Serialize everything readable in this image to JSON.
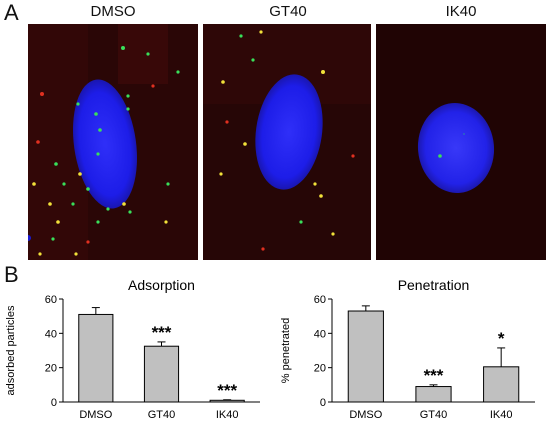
{
  "panels": {
    "a": "A",
    "b": "B"
  },
  "images": [
    {
      "title": "DMSO"
    },
    {
      "title": "GT40"
    },
    {
      "title": "IK40"
    }
  ],
  "colors": {
    "nucleus": "#1e1ef0",
    "background": "#2a0505",
    "green_particle": "#39e05a",
    "yellow_particle": "#f2e23a",
    "red_particle": "#e03020",
    "bar_fill": "#c0c0c0"
  },
  "chart_data": [
    {
      "type": "bar",
      "title": "Adsorption",
      "ylabel": "adsorbed particles",
      "categories": [
        "DMSO",
        "GT40",
        "IK40"
      ],
      "values": [
        51,
        32.5,
        1
      ],
      "errors": [
        4,
        2.5,
        0.3
      ],
      "significance": [
        "",
        "***",
        "***"
      ],
      "ylim": [
        0,
        60
      ],
      "yticks": [
        "0",
        "20",
        "40",
        "60"
      ]
    },
    {
      "type": "bar",
      "title": "Penetration",
      "ylabel": "% penetrated",
      "categories": [
        "DMSO",
        "GT40",
        "IK40"
      ],
      "values": [
        53,
        9,
        20.5
      ],
      "errors": [
        3,
        1,
        11
      ],
      "significance": [
        "",
        "***",
        "*"
      ],
      "ylim": [
        0,
        60
      ],
      "yticks": [
        "0",
        "20",
        "40",
        "60"
      ]
    }
  ]
}
